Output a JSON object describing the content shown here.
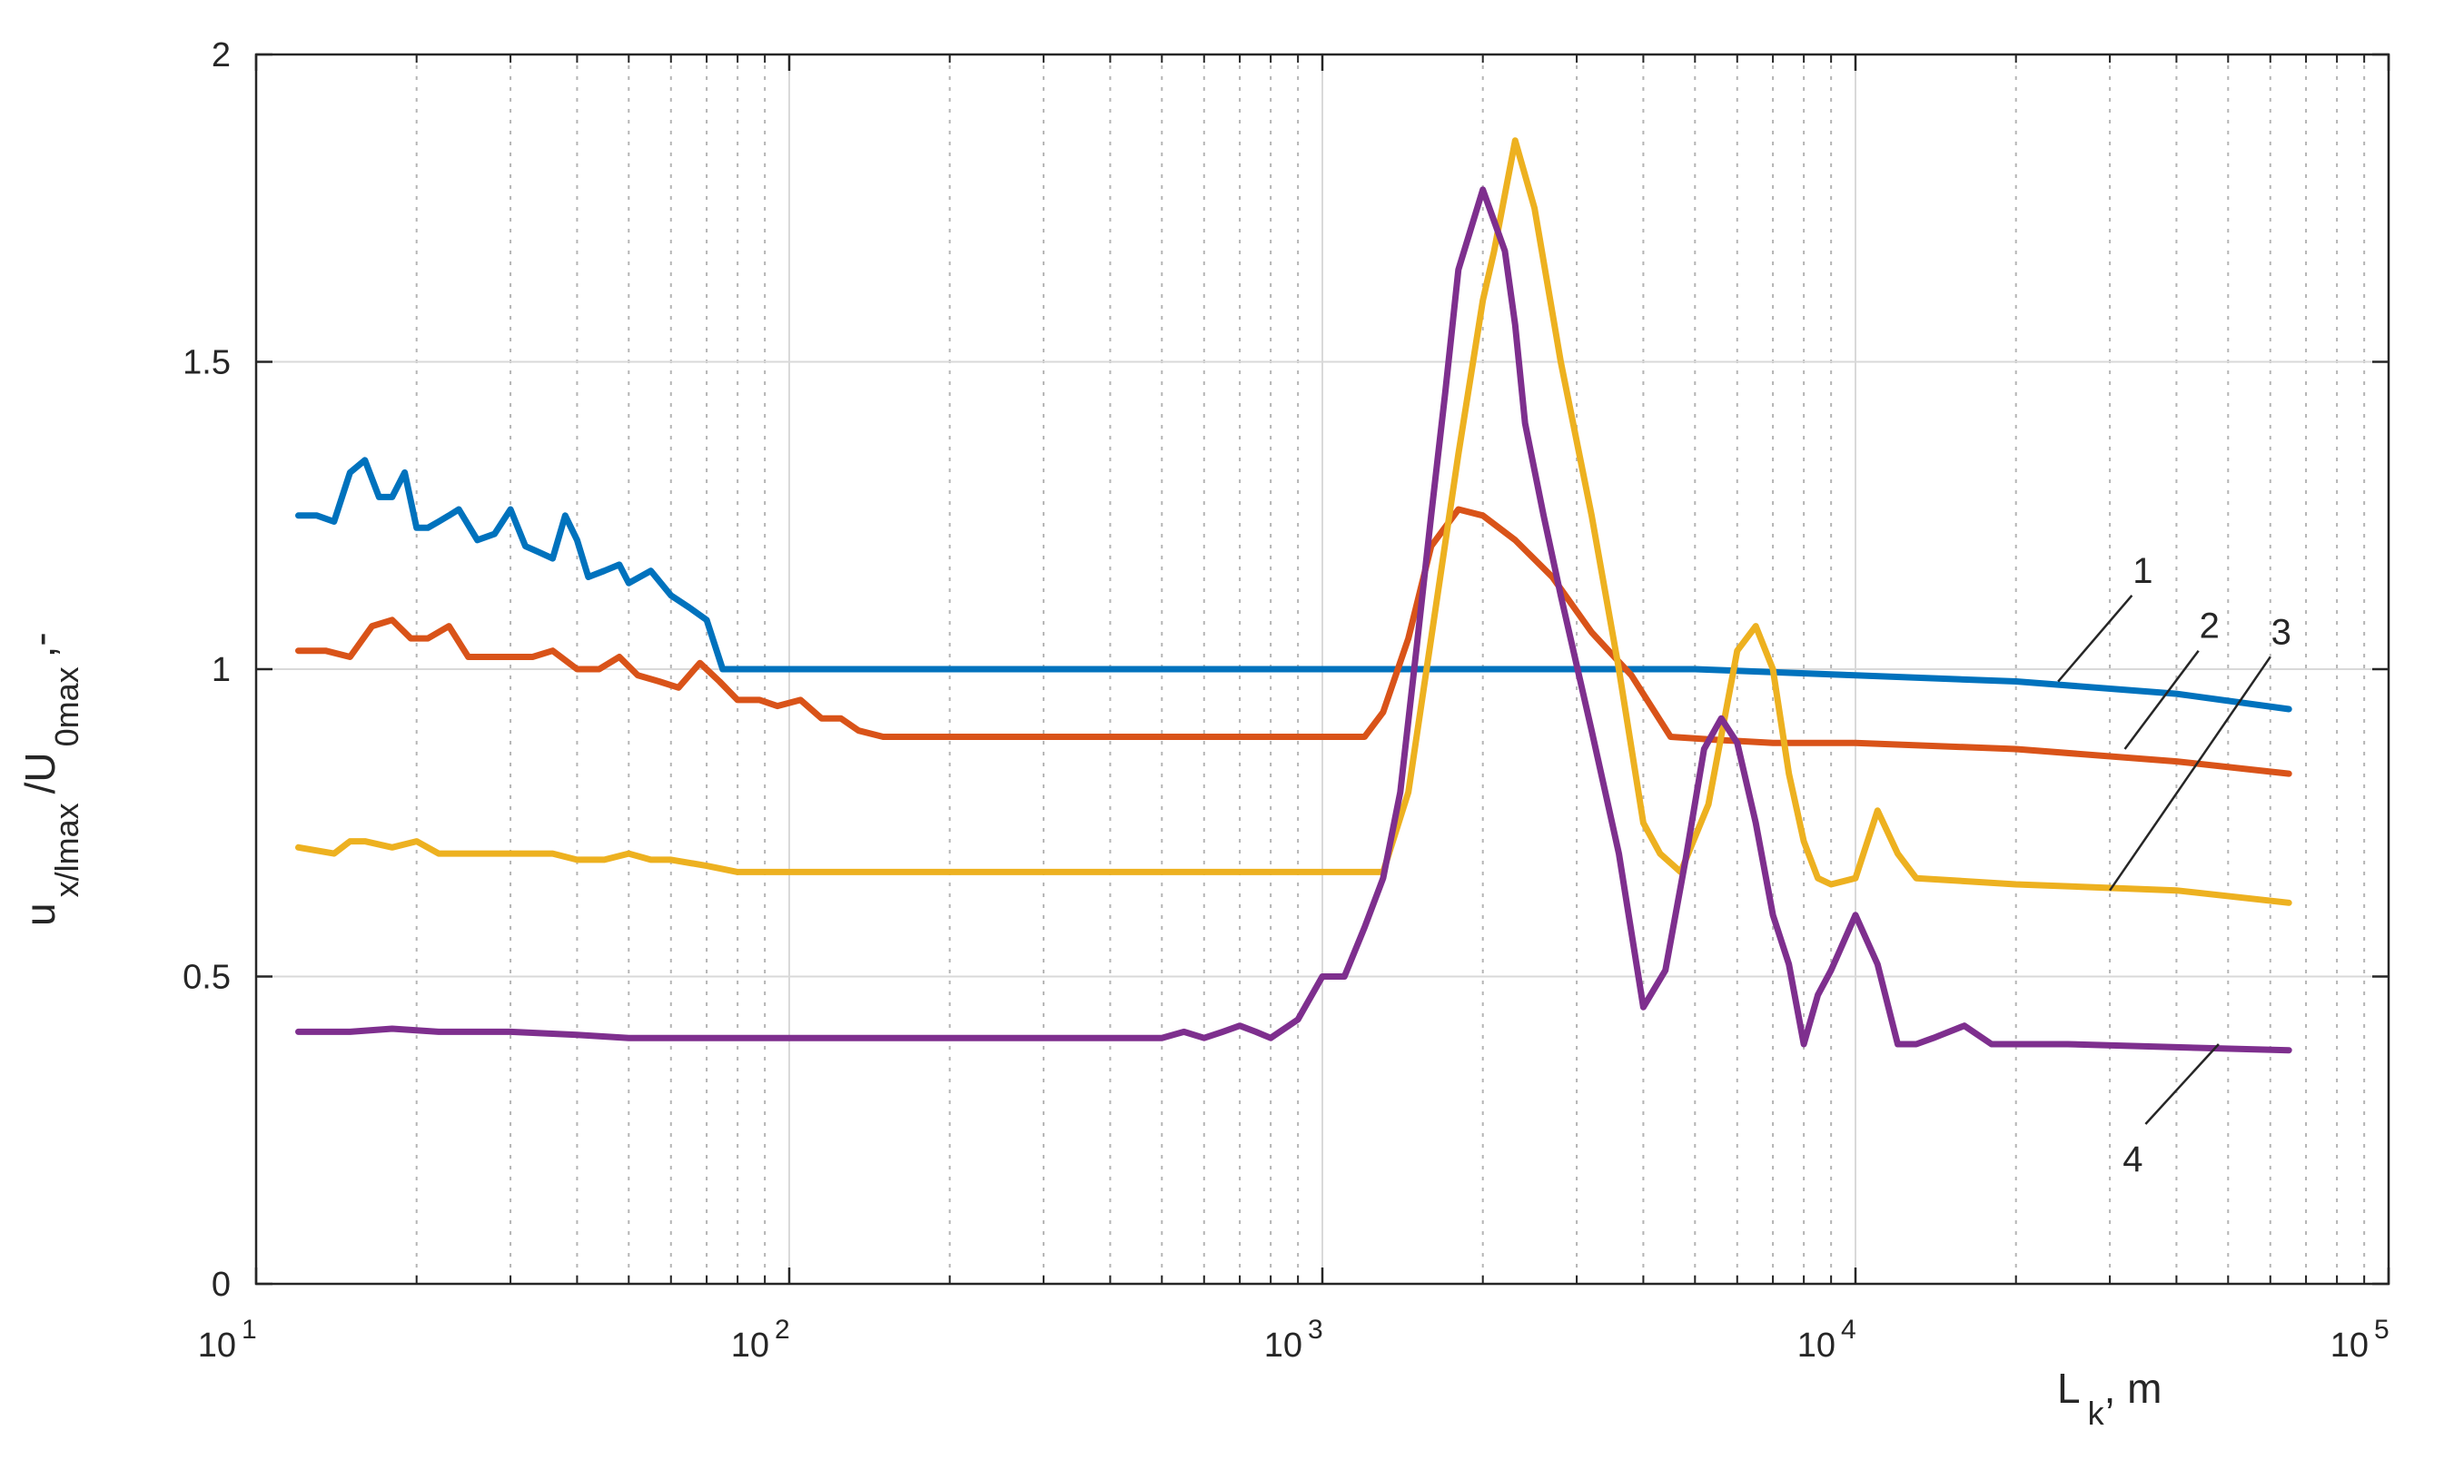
{
  "chart_data": {
    "type": "line",
    "title": "",
    "x_scale": "log",
    "xlim": [
      10,
      100000
    ],
    "ylim": [
      0,
      2
    ],
    "grid": true,
    "xlabel": {
      "main": "L",
      "sub": "k",
      "unit": ", m"
    },
    "ylabel": {
      "p1": "u",
      "p1_sub": "x/lmax",
      "p2": "/U",
      "p2_sub": "0max",
      "p3": ",-"
    },
    "x_ticks": [
      {
        "value": 10,
        "base": "10",
        "exp": "1"
      },
      {
        "value": 100,
        "base": "10",
        "exp": "2"
      },
      {
        "value": 1000,
        "base": "10",
        "exp": "3"
      },
      {
        "value": 10000,
        "base": "10",
        "exp": "4"
      },
      {
        "value": 100000,
        "base": "10",
        "exp": "5"
      }
    ],
    "y_ticks": [
      {
        "value": 0,
        "label": "0"
      },
      {
        "value": 0.5,
        "label": "0.5"
      },
      {
        "value": 1,
        "label": "1"
      },
      {
        "value": 1.5,
        "label": "1.5"
      },
      {
        "value": 2,
        "label": "2"
      }
    ],
    "series": [
      {
        "name": "1",
        "color": "#0072BD",
        "x": [
          12,
          13,
          14,
          15,
          16,
          17,
          18,
          19,
          20,
          21,
          22,
          23,
          24,
          26,
          28,
          30,
          32,
          34,
          36,
          38,
          40,
          42,
          45,
          48,
          50,
          55,
          60,
          65,
          70,
          75,
          80,
          85,
          90,
          95,
          100,
          105,
          110,
          115,
          120,
          130,
          140,
          150,
          160,
          170,
          180,
          200,
          300,
          500,
          1000,
          2000,
          3000,
          5000,
          10000,
          20000,
          40000,
          65000
        ],
        "y": [
          1.25,
          1.25,
          1.24,
          1.32,
          1.34,
          1.28,
          1.28,
          1.32,
          1.23,
          1.23,
          1.24,
          1.25,
          1.26,
          1.21,
          1.22,
          1.26,
          1.2,
          1.19,
          1.18,
          1.25,
          1.21,
          1.15,
          1.16,
          1.17,
          1.14,
          1.16,
          1.12,
          1.1,
          1.08,
          1.0,
          1.0,
          1.0,
          1.0,
          1.0,
          1.0,
          1.0,
          1.0,
          1.0,
          1.0,
          1.0,
          1.0,
          1.0,
          1.0,
          1.0,
          1.0,
          1.0,
          1.0,
          1.0,
          1.0,
          1.0,
          1.0,
          1.0,
          0.99,
          0.98,
          0.96,
          0.935
        ]
      },
      {
        "name": "2",
        "color": "#D95319",
        "x": [
          12,
          13.5,
          15,
          16.5,
          18,
          19.5,
          21,
          23,
          25,
          27,
          30,
          33,
          36,
          40,
          44,
          48,
          52,
          57,
          62,
          68,
          74,
          80,
          88,
          95,
          105,
          115,
          125,
          135,
          150,
          200,
          300,
          500,
          800,
          1200,
          1300,
          1450,
          1600,
          1800,
          2000,
          2300,
          2700,
          3200,
          3800,
          4500,
          5500,
          7000,
          10000,
          20000,
          40000,
          65000
        ],
        "y": [
          1.03,
          1.03,
          1.02,
          1.07,
          1.08,
          1.05,
          1.05,
          1.07,
          1.02,
          1.02,
          1.02,
          1.02,
          1.03,
          1.0,
          1.0,
          1.02,
          0.99,
          0.98,
          0.97,
          1.01,
          0.98,
          0.95,
          0.95,
          0.94,
          0.95,
          0.92,
          0.92,
          0.9,
          0.89,
          0.89,
          0.89,
          0.89,
          0.89,
          0.89,
          0.93,
          1.05,
          1.2,
          1.26,
          1.25,
          1.21,
          1.15,
          1.06,
          0.99,
          0.89,
          0.885,
          0.88,
          0.88,
          0.87,
          0.85,
          0.83
        ]
      },
      {
        "name": "3",
        "color": "#EDB120",
        "x": [
          12,
          14,
          15,
          16,
          18,
          20,
          22,
          24,
          28,
          32,
          36,
          40,
          45,
          50,
          55,
          60,
          70,
          80,
          90,
          100,
          150,
          200,
          300,
          500,
          800,
          1000,
          1200,
          1300,
          1450,
          1600,
          1800,
          2000,
          2100,
          2300,
          2500,
          2800,
          3200,
          3600,
          4000,
          4300,
          4700,
          5300,
          6000,
          6500,
          7000,
          7500,
          8000,
          8500,
          9000,
          10000,
          11000,
          12000,
          13000,
          20000,
          40000,
          65000
        ],
        "y": [
          0.71,
          0.7,
          0.72,
          0.72,
          0.71,
          0.72,
          0.7,
          0.7,
          0.7,
          0.7,
          0.7,
          0.69,
          0.69,
          0.7,
          0.69,
          0.69,
          0.68,
          0.67,
          0.67,
          0.67,
          0.67,
          0.67,
          0.67,
          0.67,
          0.67,
          0.67,
          0.67,
          0.67,
          0.8,
          1.05,
          1.35,
          1.6,
          1.68,
          1.86,
          1.75,
          1.5,
          1.25,
          1.0,
          0.75,
          0.7,
          0.67,
          0.78,
          1.03,
          1.07,
          1.0,
          0.83,
          0.72,
          0.66,
          0.65,
          0.66,
          0.77,
          0.7,
          0.66,
          0.65,
          0.64,
          0.62
        ]
      },
      {
        "name": "4",
        "color": "#7E2F8E",
        "x": [
          12,
          15,
          18,
          22,
          26,
          30,
          40,
          50,
          60,
          70,
          80,
          100,
          150,
          200,
          300,
          400,
          500,
          550,
          600,
          650,
          700,
          750,
          800,
          900,
          1000,
          1100,
          1200,
          1300,
          1400,
          1500,
          1600,
          1700,
          1800,
          2000,
          2200,
          2300,
          2400,
          2600,
          2800,
          3200,
          3600,
          4000,
          4400,
          4800,
          5200,
          5600,
          6000,
          6500,
          7000,
          7500,
          8000,
          8500,
          9000,
          10000,
          11000,
          12000,
          13000,
          14000,
          16000,
          18000,
          25000,
          40000,
          65000
        ],
        "y": [
          0.41,
          0.41,
          0.415,
          0.41,
          0.41,
          0.41,
          0.405,
          0.4,
          0.4,
          0.4,
          0.4,
          0.4,
          0.4,
          0.4,
          0.4,
          0.4,
          0.4,
          0.41,
          0.4,
          0.41,
          0.42,
          0.41,
          0.4,
          0.43,
          0.5,
          0.5,
          0.58,
          0.66,
          0.8,
          1.03,
          1.25,
          1.45,
          1.65,
          1.78,
          1.68,
          1.56,
          1.4,
          1.25,
          1.12,
          0.9,
          0.7,
          0.45,
          0.51,
          0.69,
          0.87,
          0.92,
          0.88,
          0.75,
          0.6,
          0.52,
          0.39,
          0.47,
          0.51,
          0.6,
          0.52,
          0.39,
          0.39,
          0.4,
          0.42,
          0.39,
          0.39,
          0.385,
          0.38
        ]
      }
    ],
    "annotations": [
      {
        "series": "1",
        "label": "1",
        "x1": 24000,
        "y1": 0.98,
        "x2": 33000,
        "y2": 1.12
      },
      {
        "series": "2",
        "label": "2",
        "x1": 32000,
        "y1": 0.87,
        "x2": 44000,
        "y2": 1.03
      },
      {
        "series": "3",
        "label": "3",
        "x1": 30000,
        "y1": 0.64,
        "x2": 60000,
        "y2": 1.02
      },
      {
        "series": "4",
        "label": "4",
        "x1": 48000,
        "y1": 0.39,
        "x2": 35000,
        "y2": 0.26
      }
    ]
  }
}
